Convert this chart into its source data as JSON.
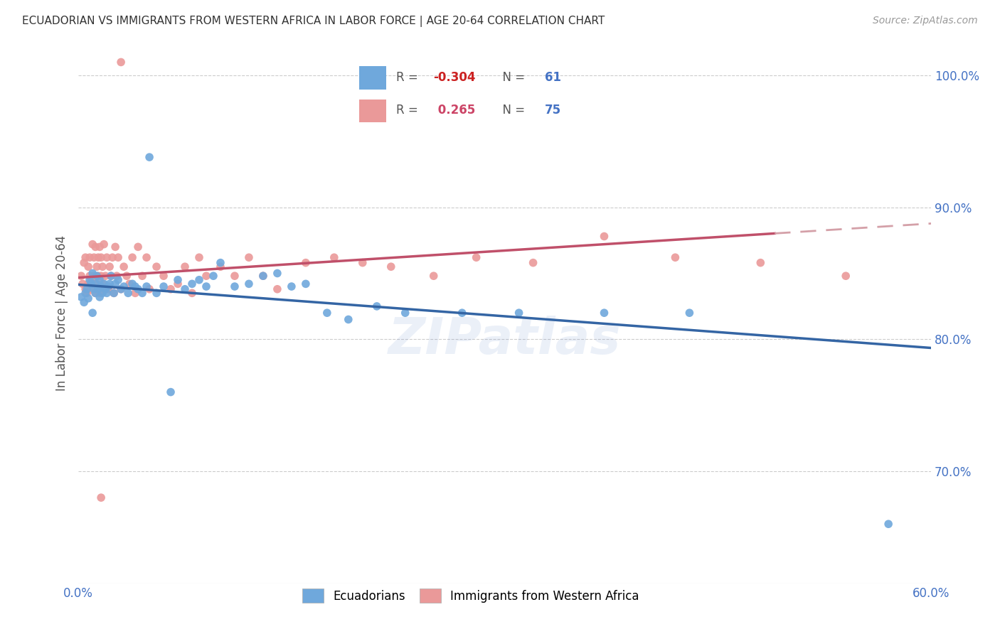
{
  "title": "ECUADORIAN VS IMMIGRANTS FROM WESTERN AFRICA IN LABOR FORCE | AGE 20-64 CORRELATION CHART",
  "source": "Source: ZipAtlas.com",
  "ylabel": "In Labor Force | Age 20-64",
  "xlim": [
    0.0,
    0.6
  ],
  "ylim": [
    0.615,
    1.025
  ],
  "yticks": [
    0.7,
    0.8,
    0.9,
    1.0
  ],
  "ytick_labels": [
    "70.0%",
    "80.0%",
    "90.0%",
    "100.0%"
  ],
  "xticks": [
    0.0,
    0.1,
    0.2,
    0.3,
    0.4,
    0.5,
    0.6
  ],
  "xtick_labels": [
    "0.0%",
    "",
    "",
    "",
    "",
    "",
    "60.0%"
  ],
  "blue_R": -0.304,
  "blue_N": 61,
  "pink_R": 0.265,
  "pink_N": 75,
  "blue_color": "#6fa8dc",
  "pink_color": "#ea9999",
  "blue_line_color": "#3465a4",
  "pink_line_color": "#c0506a",
  "pink_dash_color": "#d4a0a8",
  "watermark": "ZIPatlas",
  "legend_label_blue": "Ecuadorians",
  "legend_label_pink": "Immigrants from Western Africa",
  "blue_points_x": [
    0.002,
    0.004,
    0.005,
    0.006,
    0.007,
    0.008,
    0.009,
    0.01,
    0.01,
    0.011,
    0.012,
    0.012,
    0.013,
    0.014,
    0.015,
    0.015,
    0.016,
    0.017,
    0.018,
    0.019,
    0.02,
    0.021,
    0.022,
    0.023,
    0.025,
    0.026,
    0.028,
    0.03,
    0.032,
    0.035,
    0.038,
    0.04,
    0.042,
    0.045,
    0.048,
    0.05,
    0.055,
    0.06,
    0.065,
    0.07,
    0.075,
    0.08,
    0.085,
    0.09,
    0.095,
    0.1,
    0.11,
    0.12,
    0.13,
    0.14,
    0.15,
    0.16,
    0.175,
    0.19,
    0.21,
    0.23,
    0.27,
    0.31,
    0.37,
    0.43,
    0.57
  ],
  "blue_points_y": [
    0.832,
    0.828,
    0.835,
    0.838,
    0.831,
    0.845,
    0.842,
    0.85,
    0.82,
    0.838,
    0.835,
    0.842,
    0.848,
    0.838,
    0.832,
    0.845,
    0.84,
    0.835,
    0.842,
    0.838,
    0.835,
    0.84,
    0.842,
    0.848,
    0.835,
    0.842,
    0.845,
    0.838,
    0.84,
    0.835,
    0.842,
    0.84,
    0.838,
    0.835,
    0.84,
    0.938,
    0.835,
    0.84,
    0.76,
    0.845,
    0.838,
    0.842,
    0.845,
    0.84,
    0.848,
    0.858,
    0.84,
    0.842,
    0.848,
    0.85,
    0.84,
    0.842,
    0.82,
    0.815,
    0.825,
    0.82,
    0.82,
    0.82,
    0.82,
    0.82,
    0.66
  ],
  "pink_points_x": [
    0.002,
    0.003,
    0.004,
    0.005,
    0.005,
    0.006,
    0.007,
    0.007,
    0.008,
    0.008,
    0.009,
    0.01,
    0.01,
    0.011,
    0.011,
    0.012,
    0.012,
    0.013,
    0.013,
    0.014,
    0.014,
    0.015,
    0.015,
    0.016,
    0.016,
    0.017,
    0.017,
    0.018,
    0.018,
    0.019,
    0.02,
    0.021,
    0.022,
    0.023,
    0.024,
    0.025,
    0.026,
    0.027,
    0.028,
    0.03,
    0.032,
    0.034,
    0.036,
    0.038,
    0.04,
    0.042,
    0.045,
    0.048,
    0.05,
    0.055,
    0.06,
    0.065,
    0.07,
    0.075,
    0.08,
    0.085,
    0.09,
    0.1,
    0.11,
    0.12,
    0.13,
    0.14,
    0.16,
    0.18,
    0.2,
    0.22,
    0.25,
    0.28,
    0.32,
    0.37,
    0.42,
    0.48,
    0.54,
    0.03,
    0.016
  ],
  "pink_points_y": [
    0.848,
    0.842,
    0.858,
    0.838,
    0.862,
    0.835,
    0.842,
    0.855,
    0.848,
    0.862,
    0.838,
    0.845,
    0.872,
    0.848,
    0.862,
    0.835,
    0.87,
    0.842,
    0.855,
    0.848,
    0.862,
    0.835,
    0.87,
    0.848,
    0.862,
    0.842,
    0.855,
    0.838,
    0.872,
    0.848,
    0.862,
    0.838,
    0.855,
    0.848,
    0.862,
    0.835,
    0.87,
    0.848,
    0.862,
    0.838,
    0.855,
    0.848,
    0.842,
    0.862,
    0.835,
    0.87,
    0.848,
    0.862,
    0.838,
    0.855,
    0.848,
    0.838,
    0.842,
    0.855,
    0.835,
    0.862,
    0.848,
    0.855,
    0.848,
    0.862,
    0.848,
    0.838,
    0.858,
    0.862,
    0.858,
    0.855,
    0.848,
    0.862,
    0.858,
    0.878,
    0.862,
    0.858,
    0.848,
    1.01,
    0.68
  ]
}
